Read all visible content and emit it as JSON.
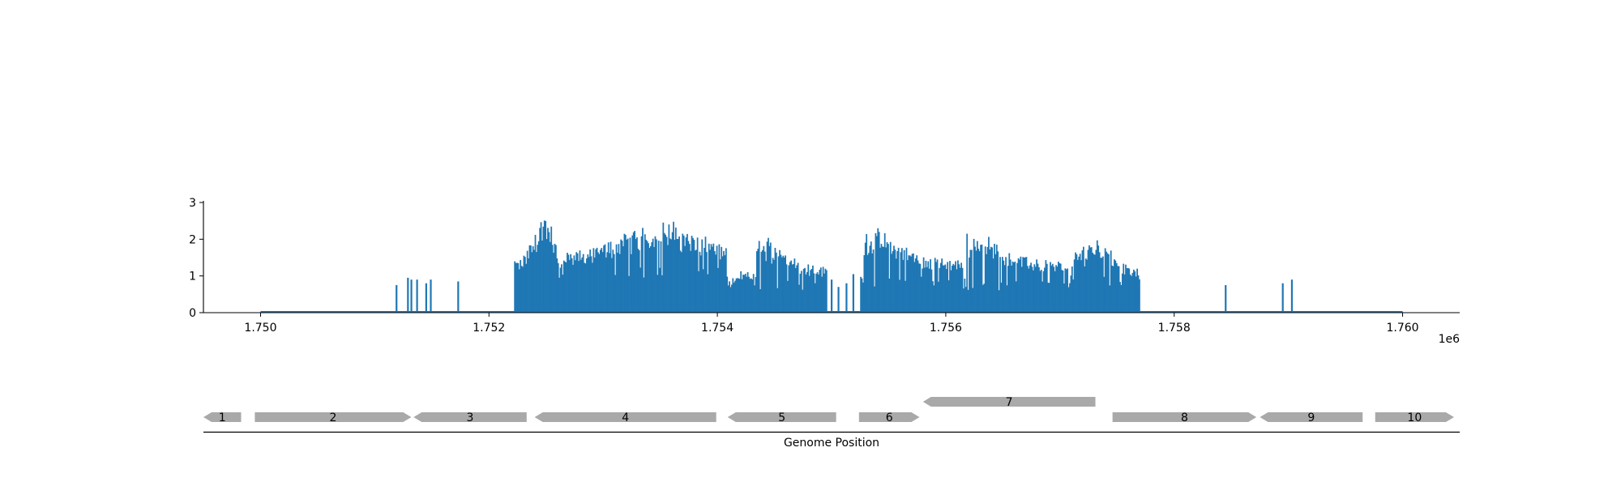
{
  "colors": {
    "coverage": "#1f77b4",
    "gene": "#a9a9a9",
    "axis": "#000000"
  },
  "chart_data": [
    {
      "type": "bar",
      "panel": "coverage",
      "title": "",
      "xlabel": "",
      "ylabel": "",
      "xlim": [
        1749500,
        1760500
      ],
      "ylim": [
        0,
        3
      ],
      "x_offset_label": "1e6",
      "x_ticks": [
        1750000,
        1752000,
        1754000,
        1756000,
        1758000,
        1760000
      ],
      "x_tick_labels": [
        "1.750",
        "1.752",
        "1.754",
        "1.756",
        "1.758",
        "1.760"
      ],
      "y_ticks": [
        0,
        1,
        2,
        3
      ],
      "y_tick_labels": [
        "0",
        "1",
        "2",
        "3"
      ],
      "baseline_range": [
        1750000,
        1760000
      ],
      "bin_width": 10,
      "regions": [
        {
          "start": 1752220,
          "end": 1752600,
          "min": 1.0,
          "max": 2.75,
          "peak": 1752480,
          "floor": 1.3
        },
        {
          "start": 1752600,
          "end": 1754080,
          "min": 0.95,
          "max": 2.5,
          "peak": 1753500,
          "floor": 1.5
        },
        {
          "start": 1754080,
          "end": 1754320,
          "min": 0.65,
          "max": 1.25,
          "peak": 1754250,
          "floor": 0.8
        },
        {
          "start": 1754320,
          "end": 1754960,
          "min": 0.6,
          "max": 2.05,
          "peak": 1754450,
          "floor": 1.2
        },
        {
          "start": 1755250,
          "end": 1756150,
          "min": 0.7,
          "max": 2.3,
          "peak": 1755350,
          "floor": 1.4
        },
        {
          "start": 1756150,
          "end": 1757080,
          "min": 0.6,
          "max": 2.15,
          "peak": 1756250,
          "floor": 1.35
        },
        {
          "start": 1757080,
          "end": 1757700,
          "min": 0.7,
          "max": 2.1,
          "peak": 1757300,
          "floor": 1.1
        }
      ],
      "spikes": [
        {
          "x": 1751190,
          "y": 0.75
        },
        {
          "x": 1751290,
          "y": 0.95
        },
        {
          "x": 1751320,
          "y": 0.9
        },
        {
          "x": 1751370,
          "y": 0.9
        },
        {
          "x": 1751450,
          "y": 0.8
        },
        {
          "x": 1751490,
          "y": 0.9
        },
        {
          "x": 1751730,
          "y": 0.85
        },
        {
          "x": 1755000,
          "y": 0.9
        },
        {
          "x": 1755060,
          "y": 0.7
        },
        {
          "x": 1755130,
          "y": 0.8
        },
        {
          "x": 1755190,
          "y": 1.05
        },
        {
          "x": 1758450,
          "y": 0.75
        },
        {
          "x": 1758950,
          "y": 0.8
        },
        {
          "x": 1759030,
          "y": 0.9
        }
      ]
    },
    {
      "type": "gene_map",
      "panel": "genes",
      "xlabel": "Genome Position",
      "xlim": [
        1749500,
        1760500
      ],
      "genes": [
        {
          "label": "1",
          "start": 1749500,
          "end": 1749830,
          "strand": -1,
          "row": 0
        },
        {
          "label": "2",
          "start": 1749950,
          "end": 1751320,
          "strand": 1,
          "row": 0
        },
        {
          "label": "3",
          "start": 1751340,
          "end": 1752330,
          "strand": -1,
          "row": 0
        },
        {
          "label": "4",
          "start": 1752400,
          "end": 1753990,
          "strand": -1,
          "row": 0
        },
        {
          "label": "5",
          "start": 1754090,
          "end": 1755040,
          "strand": -1,
          "row": 0
        },
        {
          "label": "6",
          "start": 1755240,
          "end": 1755770,
          "strand": 1,
          "row": 0
        },
        {
          "label": "7",
          "start": 1755800,
          "end": 1757310,
          "strand": -1,
          "row": 1
        },
        {
          "label": "8",
          "start": 1757460,
          "end": 1758720,
          "strand": 1,
          "row": 0
        },
        {
          "label": "9",
          "start": 1758750,
          "end": 1759650,
          "strand": -1,
          "row": 0
        },
        {
          "label": "10",
          "start": 1759760,
          "end": 1760450,
          "strand": 1,
          "row": 0
        }
      ]
    }
  ]
}
